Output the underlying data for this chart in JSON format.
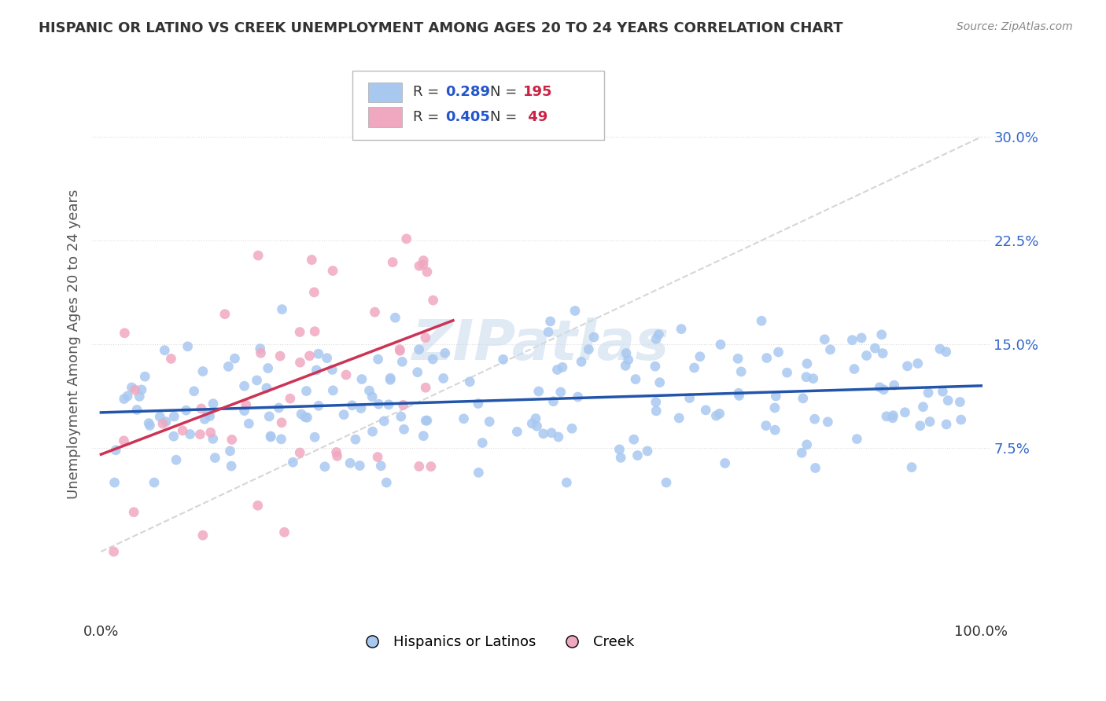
{
  "title": "HISPANIC OR LATINO VS CREEK UNEMPLOYMENT AMONG AGES 20 TO 24 YEARS CORRELATION CHART",
  "source": "Source: ZipAtlas.com",
  "ylabel": "Unemployment Among Ages 20 to 24 years",
  "blue_R": "0.289",
  "blue_N": "195",
  "pink_R": "0.405",
  "pink_N": "49",
  "blue_color": "#a8c8f0",
  "pink_color": "#f0a8c0",
  "blue_line_color": "#2255aa",
  "pink_line_color": "#cc3355",
  "ref_line_color": "#cccccc",
  "watermark": "ZIPatlas",
  "watermark_color": "#ccddee",
  "background_color": "#ffffff",
  "grid_color": "#dddddd",
  "title_color": "#333333",
  "ylabel_color": "#555555",
  "legend_R_color": "#2255cc",
  "legend_N_color": "#cc2244",
  "ytick_color": "#3366cc"
}
